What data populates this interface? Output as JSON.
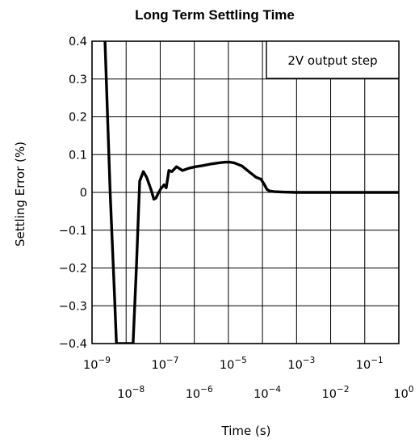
{
  "chart_data": {
    "type": "line",
    "title": "Long Term Settling Time",
    "xlabel": "Time (s)",
    "ylabel": "Settling Error (%)",
    "x_scale": "log",
    "xlim": [
      1e-09,
      1
    ],
    "ylim": [
      -0.4,
      0.4
    ],
    "grid": true,
    "y_ticks": [
      "0.4",
      "0.3",
      "0.2",
      "0.1",
      "0",
      "-0.1",
      "-0.2",
      "-0.3",
      "-0.4"
    ],
    "x_ticks_upper": [
      {
        "base": "10",
        "exp": "-9"
      },
      {
        "base": "10",
        "exp": "-7"
      },
      {
        "base": "10",
        "exp": "-5"
      },
      {
        "base": "10",
        "exp": "-3"
      },
      {
        "base": "10",
        "exp": "-1"
      }
    ],
    "x_ticks_lower": [
      {
        "base": "10",
        "exp": "-8"
      },
      {
        "base": "10",
        "exp": "-6"
      },
      {
        "base": "10",
        "exp": "-4"
      },
      {
        "base": "10",
        "exp": "-2"
      },
      {
        "base": "10",
        "exp": "0"
      }
    ],
    "annotation": "2V output step",
    "series": [
      {
        "color": "#000000",
        "x": [
          2.4e-09,
          3.4e-09,
          4.6e-09,
          5.2e-09,
          6e-09,
          7e-09,
          8.2e-09,
          1e-08,
          1.25e-08,
          1.6e-08,
          2e-08,
          2.5e-08,
          3.2e-08,
          4e-08,
          5.5e-08,
          6.5e-08,
          7.5e-08,
          8.8e-08,
          1.05e-07,
          1.3e-07,
          1.5e-07,
          1.8e-07,
          2.2e-07,
          3e-07,
          4.5e-07,
          7e-07,
          1.1e-06,
          1.8e-06,
          3e-06,
          5e-06,
          8e-06,
          1.1e-05,
          1.5e-05,
          2.5e-05,
          4e-05,
          6.5e-05,
          9e-05,
          0.000115,
          0.000135,
          0.00016,
          0.00022,
          0.0004,
          0.001,
          0.003,
          0.01,
          0.05,
          1
        ],
        "y": [
          0.4,
          0.0,
          -0.28,
          -0.4,
          -0.4,
          -0.4,
          -0.4,
          -0.4,
          -0.4,
          -0.4,
          -0.2,
          0.03,
          0.055,
          0.04,
          0.005,
          -0.018,
          -0.015,
          -0.002,
          0.01,
          0.02,
          0.012,
          0.058,
          0.055,
          0.068,
          0.058,
          0.064,
          0.068,
          0.071,
          0.075,
          0.078,
          0.08,
          0.08,
          0.078,
          0.07,
          0.055,
          0.04,
          0.035,
          0.02,
          0.008,
          0.004,
          0.002,
          0.001,
          0.0,
          0.0,
          0.0,
          0.0,
          0.0
        ]
      }
    ]
  }
}
